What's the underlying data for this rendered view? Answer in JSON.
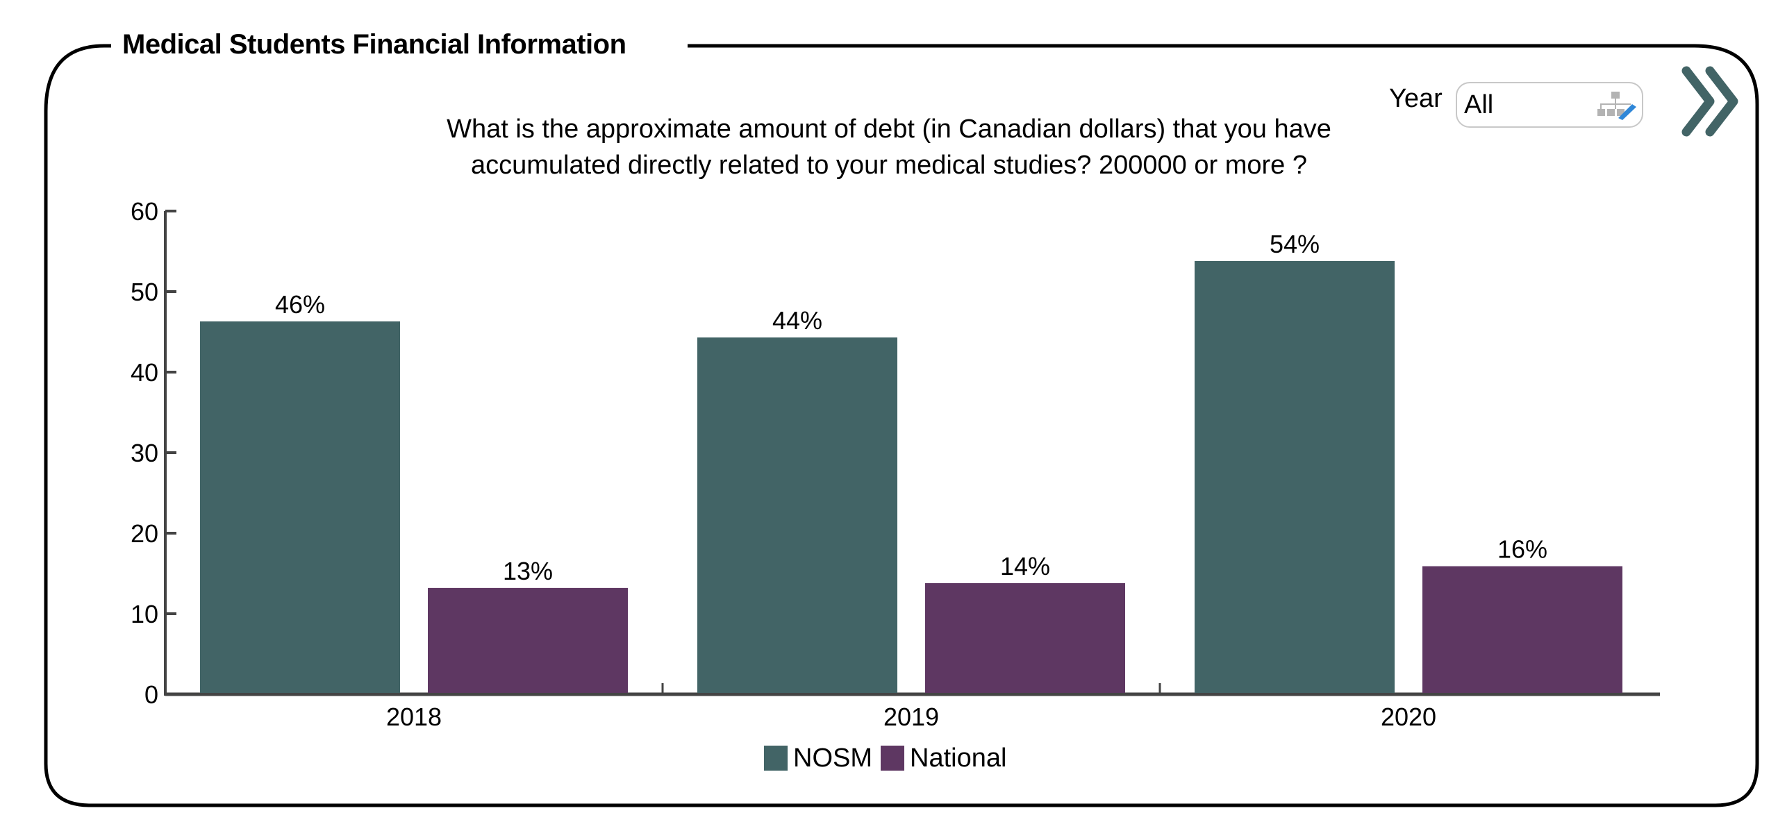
{
  "panel": {
    "title": "Medical Students Financial Information"
  },
  "filter": {
    "label": "Year",
    "value": "All",
    "icon": "hierarchy-edit-icon"
  },
  "navigation": {
    "next_icon": "double-chevron-right-icon",
    "color": "#426466"
  },
  "chart_data": {
    "type": "bar",
    "title": "What is the approximate amount of debt (in Canadian dollars) that you have accumulated directly related to your medical studies? 200000 or more ?",
    "title_lines": [
      "What is the approximate amount of debt (in Canadian dollars) that you have",
      "accumulated directly related to your medical studies? 200000 or more ?"
    ],
    "categories": [
      "2018",
      "2019",
      "2020"
    ],
    "series": [
      {
        "name": "NOSM",
        "color": "#426466",
        "values": [
          46.3,
          44.3,
          53.8
        ],
        "labels": [
          "46%",
          "44%",
          "54%"
        ]
      },
      {
        "name": "National",
        "color": "#5e3762",
        "values": [
          13.2,
          13.8,
          15.9
        ],
        "labels": [
          "13%",
          "14%",
          "16%"
        ]
      }
    ],
    "xlabel": "",
    "ylabel": "",
    "ylim": [
      0,
      60
    ],
    "yticks": [
      "0",
      "10",
      "20",
      "30",
      "40",
      "50",
      "60"
    ],
    "ytick_values": [
      0,
      10,
      20,
      30,
      40,
      50,
      60
    ],
    "grid": false,
    "legend": "bottom-center"
  }
}
